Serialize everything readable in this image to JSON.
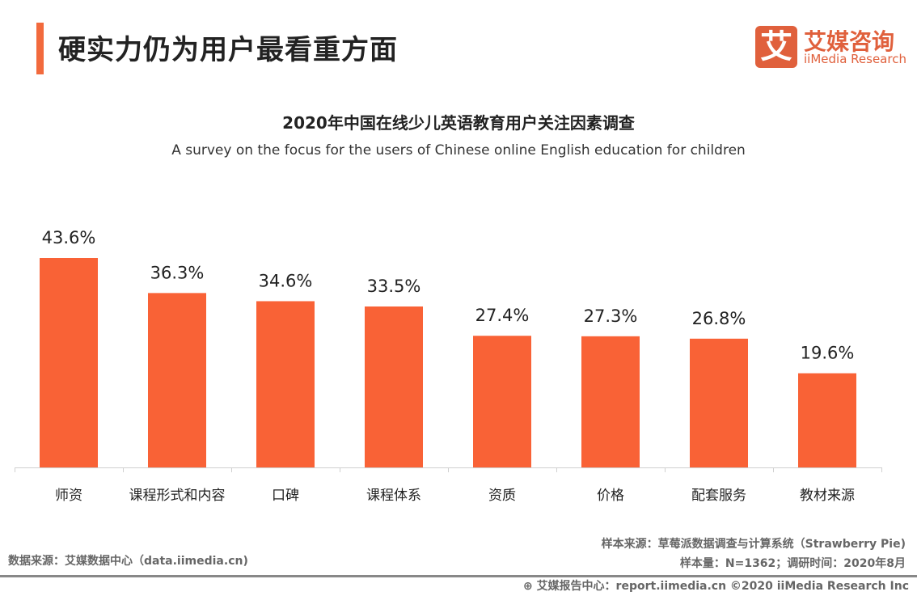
{
  "header": {
    "title": "硬实力仍为用户最看重方面",
    "accent_color": "#f26a3d"
  },
  "logo": {
    "mark": "艾",
    "cn": "艾媒咨询",
    "en": "iiMedia Research"
  },
  "chart_data": {
    "type": "bar",
    "title": "2020年中国在线少儿英语教育用户关注因素调查",
    "subtitle": "A survey on the focus for the users of Chinese online English education for children",
    "categories": [
      "师资",
      "课程形式和内容",
      "口碑",
      "课程体系",
      "资质",
      "价格",
      "配套服务",
      "教材来源"
    ],
    "values": [
      43.6,
      36.3,
      34.6,
      33.5,
      27.4,
      27.3,
      26.8,
      19.6
    ],
    "value_labels": [
      "43.6%",
      "36.3%",
      "34.6%",
      "33.5%",
      "27.4%",
      "27.3%",
      "26.8%",
      "19.6%"
    ],
    "unit": "%",
    "ylim": [
      0,
      50
    ],
    "grid": false,
    "bar_color": "#f96236"
  },
  "sources": {
    "left": "数据来源：艾媒数据中心（data.iimedia.cn)",
    "sample_source": "样本来源：草莓派数据调查与计算系统（Strawberry Pie)",
    "sample_info": "样本量：N=1362；调研时间：2020年8月"
  },
  "footer": {
    "text": "艾媒报告中心：report.iimedia.cn   ©2020  iiMedia Research  Inc"
  }
}
